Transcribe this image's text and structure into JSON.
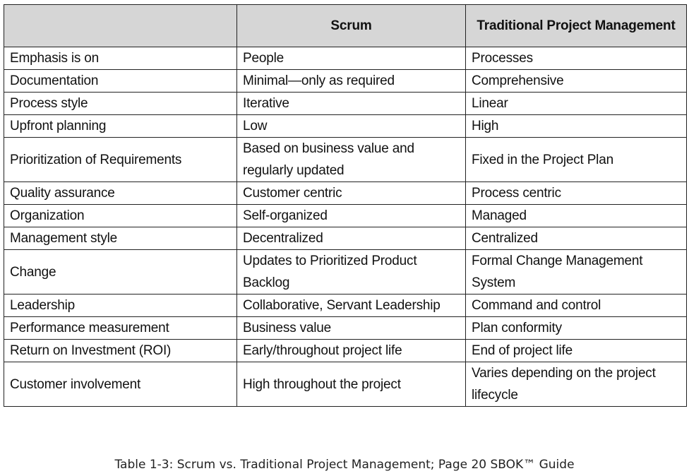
{
  "table": {
    "headers": [
      "",
      "Scrum",
      "Traditional Project Management"
    ],
    "rows": [
      [
        "Emphasis is on",
        "People",
        "Processes"
      ],
      [
        "Documentation",
        "Minimal—only as required",
        "Comprehensive"
      ],
      [
        "Process style",
        "Iterative",
        "Linear"
      ],
      [
        "Upfront planning",
        "Low",
        "High"
      ],
      [
        "Prioritization of Requirements",
        "Based on business value and regularly updated",
        "Fixed in the Project Plan"
      ],
      [
        "Quality assurance",
        "Customer centric",
        "Process centric"
      ],
      [
        "Organization",
        "Self-organized",
        "Managed"
      ],
      [
        "Management style",
        "Decentralized",
        "Centralized"
      ],
      [
        "Change",
        "Updates to Prioritized Product Backlog",
        "Formal Change Management System"
      ],
      [
        "Leadership",
        "Collaborative, Servant Leadership",
        "Command and control"
      ],
      [
        "Performance measurement",
        "Business value",
        "Plan conformity"
      ],
      [
        "Return on Investment (ROI)",
        "Early/throughout project life",
        "End of project life"
      ],
      [
        "Customer involvement",
        "High throughout the project",
        "Varies depending on the project lifecycle"
      ]
    ]
  },
  "caption": "Table 1-3: Scrum vs. Traditional Project Management; Page 20 SBOK™ Guide"
}
